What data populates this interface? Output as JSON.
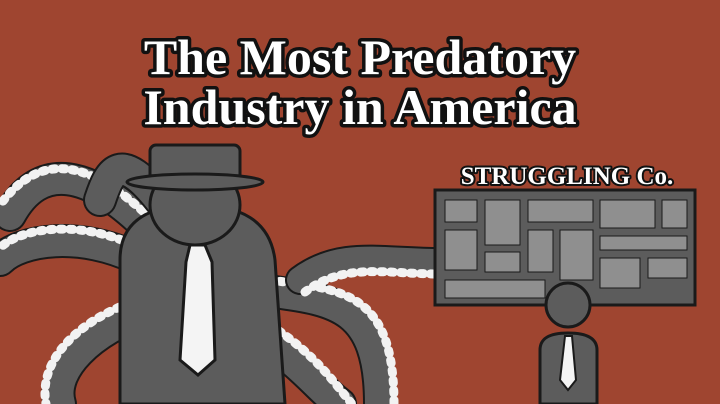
{
  "title": {
    "line1": "The Most Predatory",
    "line2": "Industry in America"
  },
  "sign": {
    "label": "STRUGGLING Co."
  }
}
